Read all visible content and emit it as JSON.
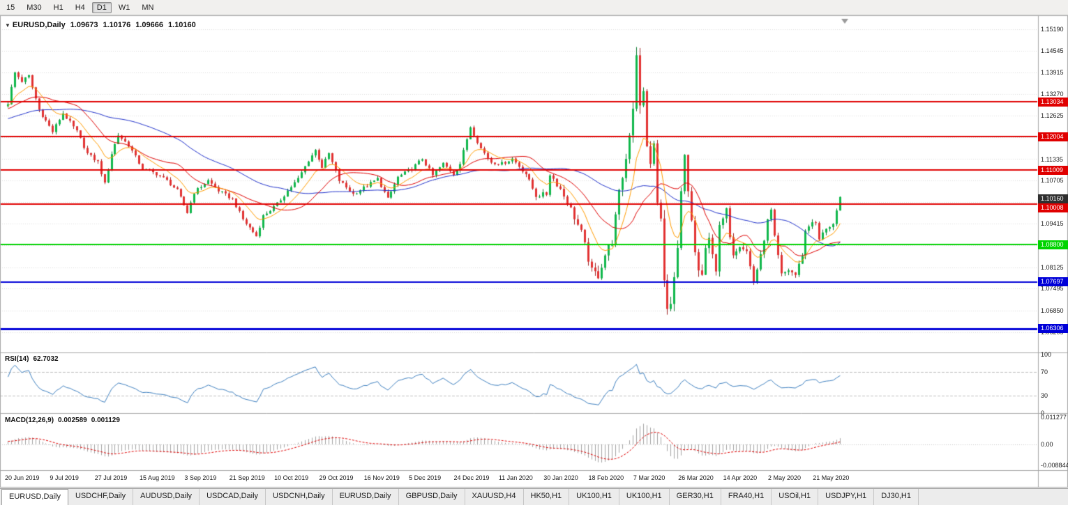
{
  "toolbar": {
    "timeframes": [
      {
        "label": "15",
        "active": false
      },
      {
        "label": "M30",
        "active": false
      },
      {
        "label": "H1",
        "active": false
      },
      {
        "label": "H4",
        "active": false
      },
      {
        "label": "D1",
        "active": true
      },
      {
        "label": "W1",
        "active": false
      },
      {
        "label": "MN",
        "active": false
      }
    ]
  },
  "chart_data": {
    "type": "candlestick",
    "title": "EURUSD,Daily",
    "ohlc": {
      "open": "1.09673",
      "high": "1.10176",
      "low": "1.09666",
      "close": "1.10160"
    },
    "price_range": {
      "top": 1.1552,
      "bottom": 1.056
    },
    "y_axis_ticks": [
      "1.15190",
      "1.14545",
      "1.13915",
      "1.13270",
      "1.12625",
      "1.11995",
      "1.11335",
      "1.10705",
      "1.10060",
      "1.09415",
      "1.08785",
      "1.08125",
      "1.07495",
      "1.06850",
      "1.06205"
    ],
    "x_axis_labels": [
      "20 Jun 2019",
      "9 Jul 2019",
      "27 Jul 2019",
      "15 Aug 2019",
      "3 Sep 2019",
      "21 Sep 2019",
      "10 Oct 2019",
      "29 Oct 2019",
      "16 Nov 2019",
      "5 Dec 2019",
      "24 Dec 2019",
      "11 Jan 2020",
      "30 Jan 2020",
      "18 Feb 2020",
      "7 Mar 2020",
      "26 Mar 2020",
      "14 Apr 2020",
      "2 May 2020",
      "21 May 2020"
    ],
    "candles_per_label": 13,
    "candle_count": 242,
    "close_keypoints": [
      [
        0,
        1.13
      ],
      [
        2,
        1.139
      ],
      [
        4,
        1.1365
      ],
      [
        6,
        1.138
      ],
      [
        9,
        1.128
      ],
      [
        13,
        1.1215
      ],
      [
        16,
        1.127
      ],
      [
        20,
        1.1215
      ],
      [
        23,
        1.115
      ],
      [
        26,
        1.1125
      ],
      [
        28,
        1.106
      ],
      [
        30,
        1.115
      ],
      [
        32,
        1.1205
      ],
      [
        35,
        1.1175
      ],
      [
        39,
        1.1105
      ],
      [
        43,
        1.109
      ],
      [
        46,
        1.107
      ],
      [
        49,
        1.104
      ],
      [
        52,
        1.0975
      ],
      [
        54,
        1.1035
      ],
      [
        58,
        1.107
      ],
      [
        61,
        1.104
      ],
      [
        65,
        1.1015
      ],
      [
        68,
        1.0955
      ],
      [
        72,
        1.0905
      ],
      [
        74,
        1.0965
      ],
      [
        78,
        1.1
      ],
      [
        81,
        1.104
      ],
      [
        84,
        1.1075
      ],
      [
        87,
        1.113
      ],
      [
        89,
        1.116
      ],
      [
        91,
        1.111
      ],
      [
        93,
        1.115
      ],
      [
        96,
        1.107
      ],
      [
        100,
        1.103
      ],
      [
        104,
        1.1055
      ],
      [
        107,
        1.1075
      ],
      [
        110,
        1.1015
      ],
      [
        113,
        1.108
      ],
      [
        117,
        1.1105
      ],
      [
        120,
        1.1135
      ],
      [
        123,
        1.1085
      ],
      [
        126,
        1.112
      ],
      [
        129,
        1.109
      ],
      [
        131,
        1.112
      ],
      [
        134,
        1.123
      ],
      [
        137,
        1.1165
      ],
      [
        140,
        1.1125
      ],
      [
        143,
        1.112
      ],
      [
        146,
        1.1135
      ],
      [
        150,
        1.109
      ],
      [
        153,
        1.1025
      ],
      [
        156,
        1.103
      ],
      [
        157,
        1.109
      ],
      [
        160,
        1.1045
      ],
      [
        163,
        1.0985
      ],
      [
        166,
        1.0915
      ],
      [
        169,
        1.08
      ],
      [
        171,
        1.079
      ],
      [
        173,
        1.085
      ],
      [
        175,
        1.089
      ],
      [
        177,
        1.103
      ],
      [
        179,
        1.1135
      ],
      [
        181,
        1.129
      ],
      [
        182,
        1.145
      ],
      [
        183,
        1.1285
      ],
      [
        184,
        1.133
      ],
      [
        185,
        1.118
      ],
      [
        186,
        1.111
      ],
      [
        187,
        1.118
      ],
      [
        188,
        1.1
      ],
      [
        189,
        1.095
      ],
      [
        190,
        1.079
      ],
      [
        191,
        1.068
      ],
      [
        192,
        1.07
      ],
      [
        193,
        1.077
      ],
      [
        194,
        1.086
      ],
      [
        195,
        1.103
      ],
      [
        196,
        1.114
      ],
      [
        197,
        1.103
      ],
      [
        198,
        1.095
      ],
      [
        199,
        1.086
      ],
      [
        200,
        1.08
      ],
      [
        201,
        1.079
      ],
      [
        202,
        1.086
      ],
      [
        203,
        1.0895
      ],
      [
        204,
        1.086
      ],
      [
        205,
        1.0805
      ],
      [
        206,
        1.093
      ],
      [
        208,
        1.098
      ],
      [
        209,
        1.091
      ],
      [
        210,
        1.0855
      ],
      [
        212,
        1.088
      ],
      [
        214,
        1.086
      ],
      [
        216,
        1.077
      ],
      [
        218,
        1.0845
      ],
      [
        220,
        1.095
      ],
      [
        221,
        1.098
      ],
      [
        222,
        1.09
      ],
      [
        224,
        1.079
      ],
      [
        226,
        1.0805
      ],
      [
        228,
        1.079
      ],
      [
        230,
        1.085
      ],
      [
        231,
        1.092
      ],
      [
        233,
        1.095
      ],
      [
        234,
        1.094
      ],
      [
        235,
        1.0895
      ],
      [
        237,
        1.093
      ],
      [
        238,
        1.0935
      ],
      [
        239,
        1.094
      ],
      [
        240,
        1.0975
      ],
      [
        241,
        1.1016
      ]
    ],
    "volatility_keypoints": [
      [
        0,
        1.0
      ],
      [
        60,
        0.9
      ],
      [
        100,
        0.9
      ],
      [
        150,
        1.0
      ],
      [
        163,
        1.8
      ],
      [
        170,
        2.4
      ],
      [
        178,
        2.6
      ],
      [
        182,
        3.0
      ],
      [
        190,
        3.0
      ],
      [
        196,
        2.6
      ],
      [
        205,
        1.9
      ],
      [
        215,
        1.4
      ],
      [
        230,
        1.2
      ],
      [
        241,
        1.2
      ]
    ],
    "horizontal_lines": [
      {
        "value": 1.13034,
        "label": "1.13034",
        "color": "#e00000",
        "width": 2
      },
      {
        "value": 1.12004,
        "label": "1.12004",
        "color": "#e00000",
        "width": 2
      },
      {
        "value": 1.11009,
        "label": "1.11009",
        "color": "#e00000",
        "width": 2
      },
      {
        "value": 1.10008,
        "label": "1.10008",
        "color": "#e00000",
        "width": 2
      },
      {
        "value": 1.088,
        "label": "1.08800",
        "color": "#00d400",
        "width": 2
      },
      {
        "value": 1.07697,
        "label": "1.07697",
        "color": "#0000d8",
        "width": 2
      },
      {
        "value": 1.06306,
        "label": "1.06306",
        "color": "#0000d8",
        "width": 3
      }
    ],
    "current_price": {
      "value": 1.1016,
      "label": "1.10160"
    },
    "moving_averages": [
      {
        "type": "sma",
        "period": 50,
        "color": "#2233cc"
      },
      {
        "type": "sma",
        "period": 20,
        "color": "#e00000"
      },
      {
        "type": "ema",
        "period": 10,
        "color": "#ff9c00"
      }
    ],
    "rsi": {
      "label": "RSI(14)",
      "value": "62.7032",
      "axis_labels": [
        "100",
        "70",
        "30",
        "0"
      ],
      "overbought": 70,
      "oversold": 30
    },
    "macd": {
      "label": "MACD(12,26,9)",
      "value": "0.002589",
      "signal_value": "0.001129",
      "axis_labels": [
        "0.011277",
        "0.00",
        "-0.008844"
      ],
      "range": {
        "max": 0.0125,
        "min": -0.0105
      }
    }
  },
  "colors": {
    "background": "#ffffff",
    "grid": "#dcdcdc",
    "panel_border": "#a6a6a6",
    "candle_up": "#10b84c",
    "candle_down": "#e23232",
    "candle_up_wick": "#0a7c30",
    "candle_down_wick": "#a12424",
    "rsi_line": "#3e80c0",
    "rsi_levels": "#c0c0c0",
    "macd_histogram": "#a4a4a4",
    "macd_signal": "#e00000",
    "current_tag_bg": "#2f2f2f",
    "shift_marker": "#9a9a9a"
  },
  "tabs": [
    {
      "label": "EURUSD,Daily",
      "active": true
    },
    {
      "label": "USDCHF,Daily",
      "active": false
    },
    {
      "label": "AUDUSD,Daily",
      "active": false
    },
    {
      "label": "USDCAD,Daily",
      "active": false
    },
    {
      "label": "USDCNH,Daily",
      "active": false
    },
    {
      "label": "EURUSD,Daily",
      "active": false
    },
    {
      "label": "GBPUSD,Daily",
      "active": false
    },
    {
      "label": "XAUUSD,H4",
      "active": false
    },
    {
      "label": "HK50,H1",
      "active": false
    },
    {
      "label": "UK100,H1",
      "active": false
    },
    {
      "label": "UK100,H1",
      "active": false
    },
    {
      "label": "GER30,H1",
      "active": false
    },
    {
      "label": "FRA40,H1",
      "active": false
    },
    {
      "label": "USOil,H1",
      "active": false
    },
    {
      "label": "USDJPY,H1",
      "active": false
    },
    {
      "label": "DJ30,H1",
      "active": false
    }
  ]
}
